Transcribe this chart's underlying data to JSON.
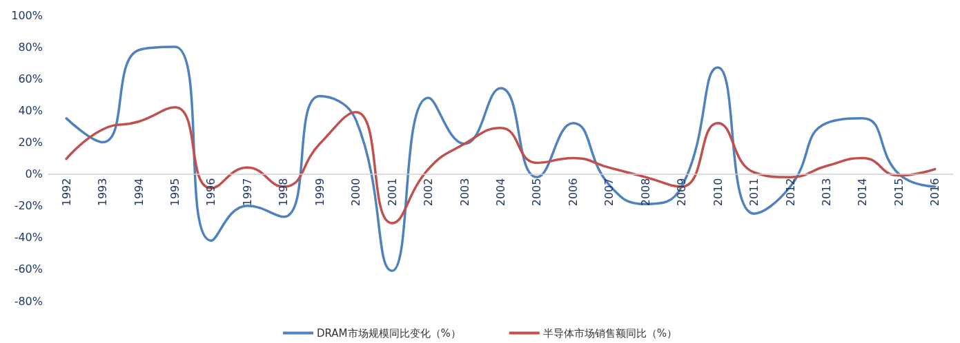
{
  "chart_data": {
    "type": "line",
    "categories": [
      "1992",
      "1993",
      "1994",
      "1995",
      "1996",
      "1997",
      "1998",
      "1999",
      "2000",
      "2001",
      "2002",
      "2003",
      "2004",
      "2005",
      "2006",
      "2007",
      "2008",
      "2009",
      "2010",
      "2011",
      "2012",
      "2013",
      "2014",
      "2015",
      "2016"
    ],
    "series": [
      {
        "name": "DRAM市场规模同比变化（%）",
        "color": "#4f81bd",
        "values": [
          35,
          20,
          78,
          80,
          -42,
          -20,
          -27,
          49,
          34,
          -61,
          48,
          19,
          54,
          -2,
          32,
          -7,
          -19,
          -8,
          67,
          -25,
          -8,
          32,
          35,
          0,
          -8
        ]
      },
      {
        "name": "半导体市场销售额同比（%）",
        "color": "#c0504d",
        "values": [
          9.5,
          28,
          33,
          42,
          -9,
          4,
          -8,
          19,
          39,
          -31,
          3,
          19,
          29,
          7,
          10,
          4,
          -2,
          -8,
          32,
          1,
          -2,
          5,
          10,
          -1,
          3
        ]
      }
    ],
    "ylim": [
      -80,
      100
    ],
    "yticks": [
      {
        "value": -80,
        "label": "-80%"
      },
      {
        "value": -60,
        "label": "-60%"
      },
      {
        "value": -40,
        "label": "-40%"
      },
      {
        "value": -20,
        "label": "-20%"
      },
      {
        "value": 0,
        "label": "0%"
      },
      {
        "value": 20,
        "label": "20%"
      },
      {
        "value": 40,
        "label": "40%"
      },
      {
        "value": 60,
        "label": "60%"
      },
      {
        "value": 80,
        "label": "80%"
      },
      {
        "value": 100,
        "label": "100%"
      }
    ],
    "grid": false,
    "legend": "bottom",
    "marker": "none",
    "line_style": "solid"
  }
}
